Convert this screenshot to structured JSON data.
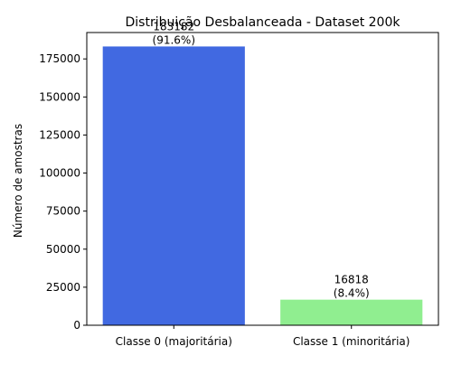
{
  "chart_data": {
    "type": "bar",
    "title": "Distribuição Desbalanceada - Dataset 200k",
    "xlabel": "",
    "ylabel": "Número de amostras",
    "categories": [
      "Classe 0 (majoritária)",
      "Classe 1 (minoritária)"
    ],
    "values": [
      183182,
      16818
    ],
    "data_labels": [
      {
        "count": "183182",
        "percent": "(91.6%)"
      },
      {
        "count": "16818",
        "percent": "(8.4%)"
      }
    ],
    "colors": [
      "#4169e1",
      "#90ee90"
    ],
    "ylim": [
      0,
      192342
    ],
    "yticks": [
      0,
      25000,
      50000,
      75000,
      100000,
      125000,
      150000,
      175000
    ],
    "ytick_labels": [
      "0",
      "25000",
      "50000",
      "75000",
      "100000",
      "125000",
      "150000",
      "175000"
    ],
    "grid": false,
    "legend": "none"
  }
}
